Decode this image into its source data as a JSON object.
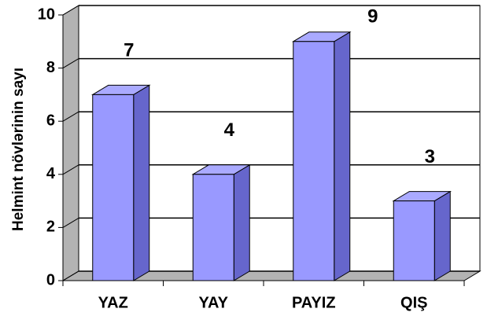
{
  "chart_data": {
    "type": "bar3d",
    "ylabel": "Helmint növlərinin sayı",
    "categories": [
      "YAZ",
      "YAY",
      "PAYIZ",
      "QIŞ"
    ],
    "values": [
      7,
      4,
      9,
      3
    ],
    "color": "#9999ff",
    "ylim": [
      0,
      10
    ],
    "yticks": [
      0,
      2,
      4,
      6,
      8,
      10
    ],
    "grid": true
  }
}
